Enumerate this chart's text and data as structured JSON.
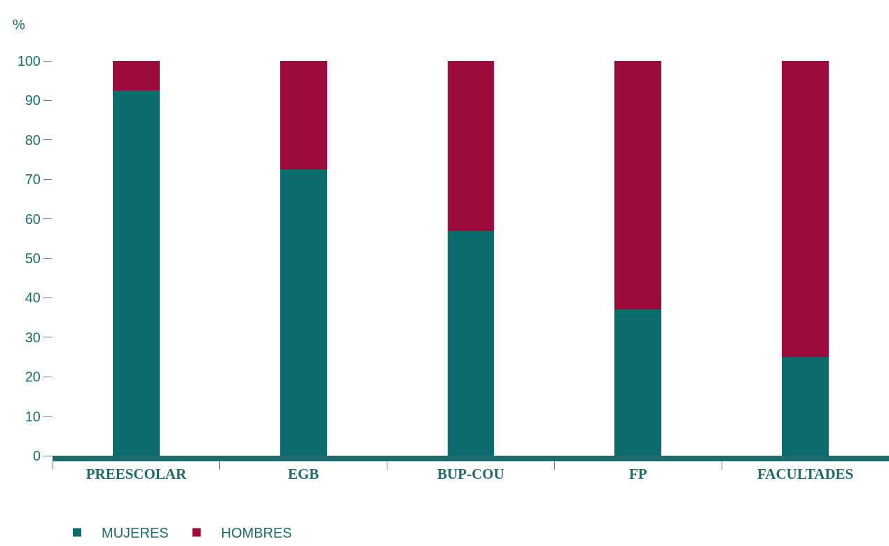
{
  "chart_data": {
    "type": "bar",
    "stacked": true,
    "ylabel": "%",
    "categories": [
      "PREESCOLAR",
      "EGB",
      "BUP-COU",
      "FP",
      "FACULTADES"
    ],
    "series": [
      {
        "name": "MUJERES",
        "color": "#0e6b6b",
        "values": [
          92.5,
          72.5,
          57,
          37,
          25
        ]
      },
      {
        "name": "HOMBRES",
        "color": "#9b0a3a",
        "values": [
          7.5,
          27.5,
          43,
          63,
          75
        ]
      }
    ],
    "ylim": [
      0,
      100
    ],
    "yticks": [
      0,
      10,
      20,
      30,
      40,
      50,
      60,
      70,
      80,
      90,
      100
    ],
    "grid": false,
    "legend": "bottom left"
  }
}
